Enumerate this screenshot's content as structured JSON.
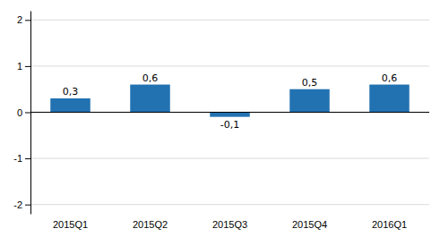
{
  "chart_data": {
    "type": "bar",
    "categories": [
      "2015Q1",
      "2015Q2",
      "2015Q3",
      "2015Q4",
      "2016Q1"
    ],
    "values": [
      0.3,
      0.6,
      -0.1,
      0.5,
      0.6
    ],
    "value_labels": [
      "0,3",
      "0,6",
      "-0,1",
      "0,5",
      "0,6"
    ],
    "color": "#2272b2",
    "ylim": [
      -2.2,
      2.2
    ],
    "yticks": [
      -2,
      -1,
      0,
      1,
      2
    ],
    "grid": true,
    "data_labels": true
  }
}
